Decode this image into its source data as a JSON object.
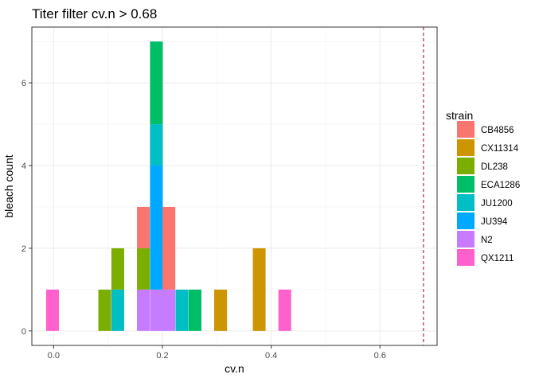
{
  "chart_data": {
    "type": "bar",
    "subtype": "stacked-histogram",
    "title": "Titer filter cv.n > 0.68",
    "xlabel": "cv.n",
    "ylabel": "bleach count",
    "xlim": [
      -0.04,
      0.705
    ],
    "ylim": [
      -0.35,
      7.35
    ],
    "x_ticks": [
      0.0,
      0.2,
      0.4,
      0.6
    ],
    "x_tick_labels": [
      "0.0",
      "0.2",
      "0.4",
      "0.6"
    ],
    "y_ticks": [
      0,
      2,
      4,
      6
    ],
    "y_tick_labels": [
      "0",
      "2",
      "4",
      "6"
    ],
    "bin_width": 0.0235,
    "grid": true,
    "legend_position": "right",
    "legend_title": "strain",
    "threshold_line": {
      "x": 0.68,
      "color": "#990033",
      "style": "dashed"
    },
    "series": [
      {
        "name": "CB4856",
        "color": "#F8766D"
      },
      {
        "name": "CX11314",
        "color": "#CD9600"
      },
      {
        "name": "DL238",
        "color": "#7CAE00"
      },
      {
        "name": "ECA1286",
        "color": "#00BE67"
      },
      {
        "name": "JU1200",
        "color": "#00BFC4"
      },
      {
        "name": "JU394",
        "color": "#00A9FF"
      },
      {
        "name": "N2",
        "color": "#C77CFF"
      },
      {
        "name": "QX1211",
        "color": "#FF61CC"
      }
    ],
    "bins": [
      {
        "x": -0.002,
        "segments": [
          {
            "strain": "QX1211",
            "count": 1
          }
        ]
      },
      {
        "x": 0.094,
        "segments": [
          {
            "strain": "DL238",
            "count": 1
          }
        ]
      },
      {
        "x": 0.118,
        "segments": [
          {
            "strain": "DL238",
            "count": 1
          },
          {
            "strain": "JU1200",
            "count": 1
          }
        ]
      },
      {
        "x": 0.165,
        "segments": [
          {
            "strain": "CB4856",
            "count": 1
          },
          {
            "strain": "DL238",
            "count": 1
          },
          {
            "strain": "N2",
            "count": 1
          }
        ]
      },
      {
        "x": 0.189,
        "segments": [
          {
            "strain": "ECA1286",
            "count": 2
          },
          {
            "strain": "JU1200",
            "count": 1
          },
          {
            "strain": "JU394",
            "count": 3
          },
          {
            "strain": "N2",
            "count": 1
          }
        ]
      },
      {
        "x": 0.212,
        "segments": [
          {
            "strain": "CB4856",
            "count": 2
          },
          {
            "strain": "N2",
            "count": 1
          }
        ]
      },
      {
        "x": 0.236,
        "segments": [
          {
            "strain": "JU1200",
            "count": 1
          }
        ]
      },
      {
        "x": 0.26,
        "segments": [
          {
            "strain": "ECA1286",
            "count": 1
          }
        ]
      },
      {
        "x": 0.307,
        "segments": [
          {
            "strain": "CX11314",
            "count": 1
          }
        ]
      },
      {
        "x": 0.378,
        "segments": [
          {
            "strain": "CX11314",
            "count": 2
          }
        ]
      },
      {
        "x": 0.425,
        "segments": [
          {
            "strain": "QX1211",
            "count": 1
          }
        ]
      }
    ]
  }
}
